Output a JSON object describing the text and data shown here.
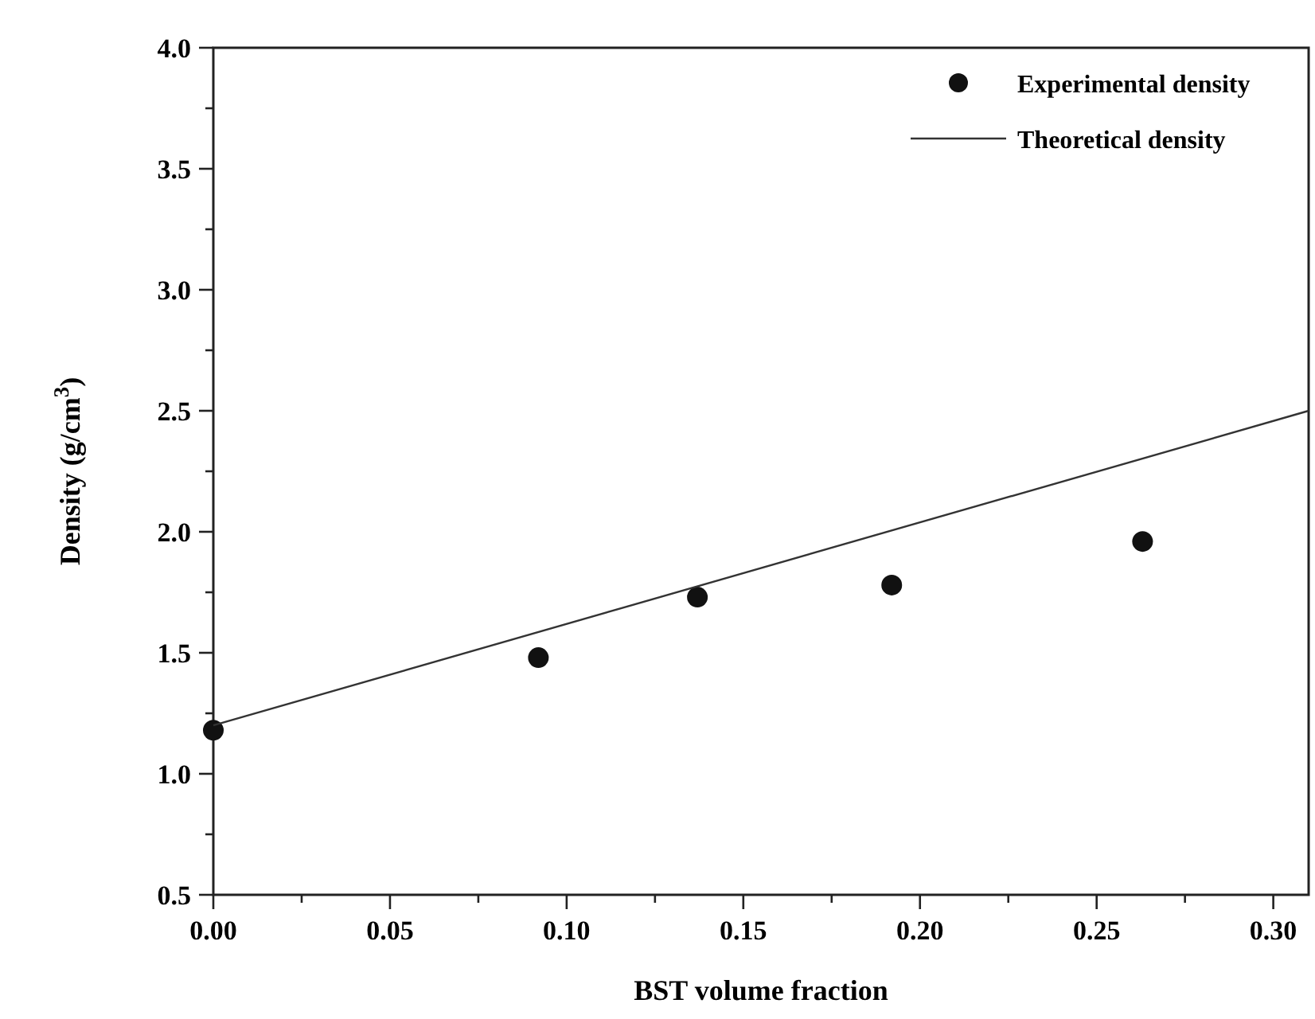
{
  "chart_data": {
    "type": "scatter",
    "xlabel": "BST volume fraction",
    "ylabel": "Density (g/cm$^{3}$)",
    "xlim": [
      0,
      0.31
    ],
    "ylim": [
      0.5,
      4.0
    ],
    "xticks": [
      {
        "value": 0,
        "label": "0.00"
      },
      {
        "value": 0.025,
        "label": null
      },
      {
        "value": 0.05,
        "label": "0.05"
      },
      {
        "value": 0.075,
        "label": null
      },
      {
        "value": 0.1,
        "label": "0.10"
      },
      {
        "value": 0.125,
        "label": null
      },
      {
        "value": 0.15,
        "label": "0.15"
      },
      {
        "value": 0.175,
        "label": null
      },
      {
        "value": 0.2,
        "label": "0.20"
      },
      {
        "value": 0.225,
        "label": null
      },
      {
        "value": 0.25,
        "label": "0.25"
      },
      {
        "value": 0.275,
        "label": null
      },
      {
        "value": 0.3,
        "label": "0.30"
      }
    ],
    "yticks": [
      0.5,
      {
        "value": 0.75,
        "label": null
      },
      {
        "value": 1,
        "label": "1.0"
      },
      {
        "value": 1.25,
        "label": null
      },
      1.5,
      {
        "value": 1.75,
        "label": null
      },
      {
        "value": 2,
        "label": "2.0"
      },
      {
        "value": 2.25,
        "label": null
      },
      2.5,
      {
        "value": 2.75,
        "label": null
      },
      {
        "value": 3,
        "label": "3.0"
      },
      {
        "value": 3.25,
        "label": null
      },
      3.5,
      {
        "value": 3.75,
        "label": null
      },
      {
        "value": 4,
        "label": "4.0"
      }
    ],
    "legend": "top right",
    "grid": false,
    "series": [
      {
        "name": "Experimental density",
        "marker": "circle",
        "color": "#111111",
        "x": [
          0,
          0.092,
          0.137,
          0.192,
          0.263
        ],
        "values": [
          1.18,
          1.48,
          1.73,
          1.78,
          1.96
        ]
      },
      {
        "name": "Theoretical density",
        "type": "line",
        "marker": "none",
        "line_style": "solid",
        "color": "#333333",
        "x": [
          0,
          0.31
        ],
        "values": [
          1.2,
          2.5
        ]
      }
    ]
  }
}
